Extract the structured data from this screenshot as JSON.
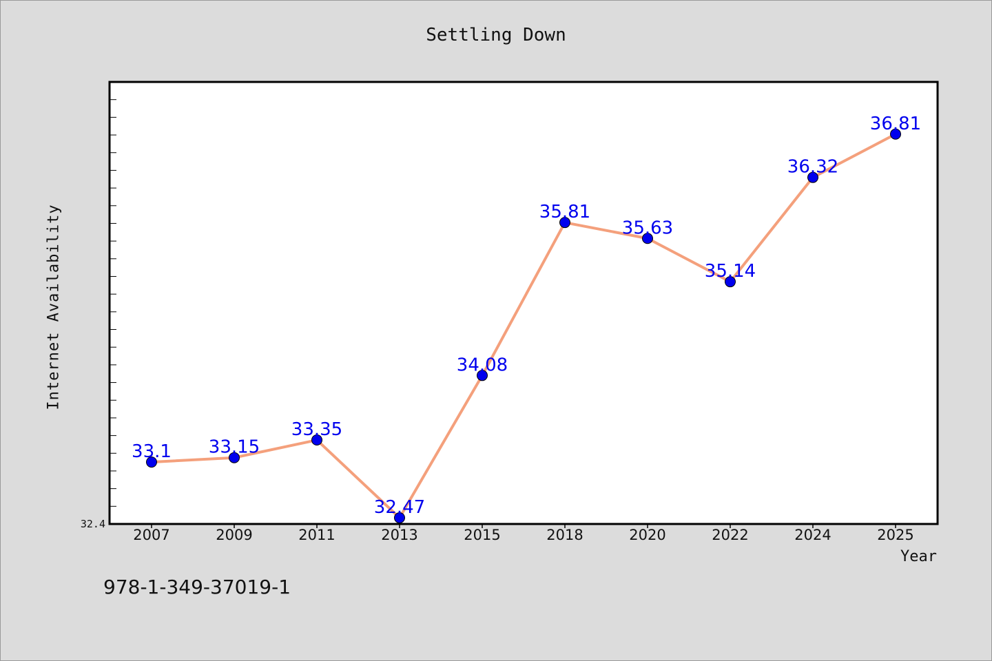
{
  "chart_data": {
    "type": "line",
    "title": "Settling Down",
    "xlabel": "Year",
    "ylabel": "Internet Availability",
    "categories": [
      "2007",
      "2009",
      "2011",
      "2013",
      "2015",
      "2018",
      "2020",
      "2022",
      "2024",
      "2025"
    ],
    "series": [
      {
        "values": [
          33.1,
          33.15,
          33.35,
          32.47,
          34.08,
          35.81,
          35.63,
          35.14,
          36.32,
          36.81
        ],
        "labels": [
          "33.1",
          "33.15",
          "33.35",
          "32.47",
          "34.08",
          "35.81",
          "35.63",
          "35.14",
          "36.32",
          "36.81"
        ],
        "line_color": "#f4a07c",
        "marker_color": "#0000ee"
      }
    ],
    "y_tick_labels": [
      "32.4"
    ],
    "ylim": [
      32.4,
      37.4
    ],
    "grid": false,
    "legend": "none"
  },
  "footer": {
    "isbn": "978-1-349-37019-1"
  }
}
